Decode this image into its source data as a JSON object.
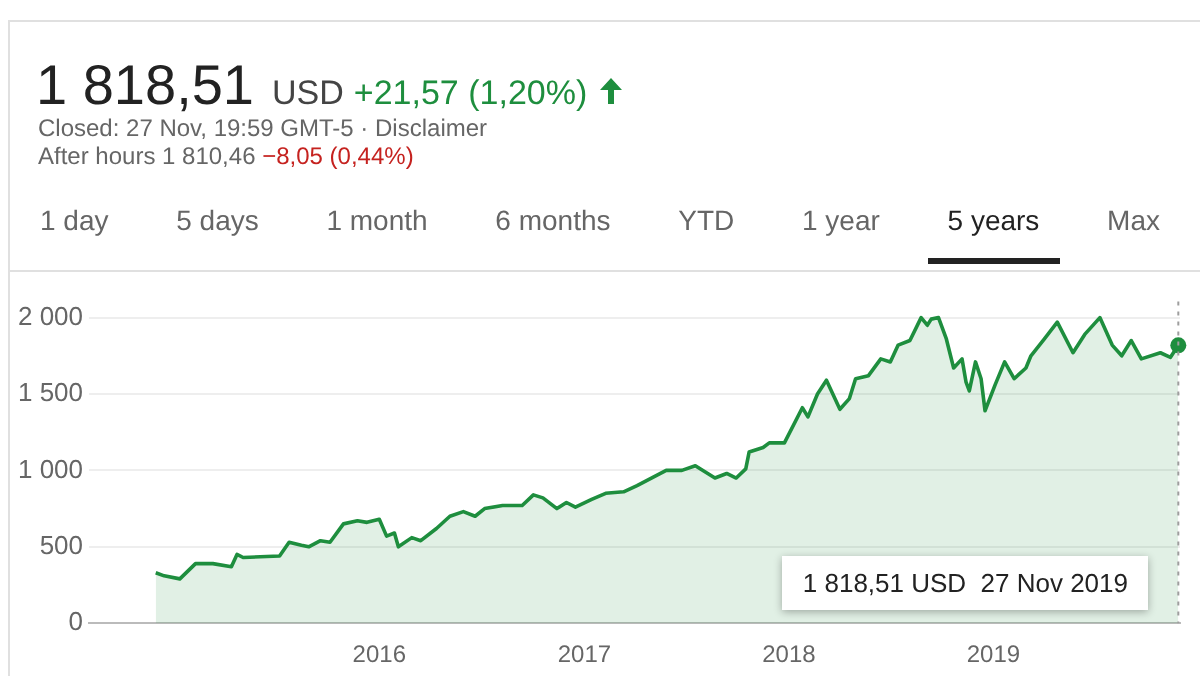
{
  "chart_data": {
    "type": "area",
    "title": "1 818,51",
    "subtitle": "Closed: 27 Nov, 19:59 GMT-5 · Disclaimer",
    "annotations": [
      "USD",
      "+21,57 (1,20%)",
      "After hours 1 810,46",
      "−8,05 (0,44%)",
      "1 day",
      "5 days",
      "1 month",
      "6 months",
      "YTD",
      "1 year",
      "5 years",
      "Max",
      "1 818,51 USD  27 Nov 2019"
    ],
    "x": [
      "2014-11-28",
      "2014-12-13",
      "2015-01-10",
      "2015-02-07",
      "2015-03-10",
      "2015-04-12",
      "2015-04-22",
      "2015-05-03",
      "2015-07-07",
      "2015-07-24",
      "2015-08-15",
      "2015-08-28",
      "2015-09-18",
      "2015-10-05",
      "2015-10-29",
      "2015-11-23",
      "2015-12-10",
      "2016-01-01",
      "2016-01-14",
      "2016-01-28",
      "2016-02-04",
      "2016-02-28",
      "2016-03-15",
      "2016-04-12",
      "2016-05-06",
      "2016-05-30",
      "2016-06-20",
      "2016-07-07",
      "2016-08-08",
      "2016-09-12",
      "2016-10-02",
      "2016-10-19",
      "2016-11-13",
      "2016-11-30",
      "2016-12-16",
      "2017-01-14",
      "2017-02-08",
      "2017-03-12",
      "2017-04-05",
      "2017-05-27",
      "2017-06-24",
      "2017-07-18",
      "2017-08-22",
      "2017-09-12",
      "2017-09-29",
      "2017-10-16",
      "2017-10-22",
      "2017-11-16",
      "2017-11-27",
      "2017-12-24",
      "2018-01-25",
      "2018-02-04",
      "2018-02-21",
      "2018-03-09",
      "2018-04-02",
      "2018-04-19",
      "2018-04-30",
      "2018-05-23",
      "2018-06-14",
      "2018-07-01",
      "2018-07-15",
      "2018-08-05",
      "2018-08-25",
      "2018-09-05",
      "2018-09-12",
      "2018-09-25",
      "2018-10-09",
      "2018-10-22",
      "2018-11-06",
      "2018-11-13",
      "2018-11-19",
      "2018-11-30",
      "2018-12-10",
      "2018-12-17",
      "2019-01-04",
      "2019-01-21",
      "2019-02-07",
      "2019-02-28",
      "2019-03-09",
      "2019-04-02",
      "2019-04-25",
      "2019-05-23",
      "2019-06-13",
      "2019-07-10",
      "2019-08-01",
      "2019-08-18",
      "2019-09-04",
      "2019-09-22",
      "2019-10-26",
      "2019-11-13",
      "2019-11-27"
    ],
    "series": [
      {
        "color": "#1e8e3e",
        "values": [
          330,
          310,
          290,
          390,
          390,
          370,
          450,
          430,
          440,
          530,
          510,
          500,
          540,
          530,
          650,
          670,
          660,
          680,
          570,
          590,
          500,
          560,
          540,
          620,
          700,
          730,
          700,
          750,
          770,
          770,
          840,
          820,
          750,
          790,
          760,
          810,
          850,
          860,
          900,
          1000,
          1000,
          1030,
          950,
          980,
          950,
          1010,
          1120,
          1150,
          1180,
          1180,
          1410,
          1350,
          1500,
          1590,
          1400,
          1470,
          1600,
          1620,
          1730,
          1710,
          1820,
          1850,
          2000,
          1950,
          1990,
          2000,
          1860,
          1670,
          1730,
          1580,
          1520,
          1710,
          1600,
          1390,
          1560,
          1710,
          1600,
          1670,
          1750,
          1860,
          1970,
          1770,
          1890,
          2000,
          1820,
          1750,
          1850,
          1730,
          1770,
          1740,
          1818.51
        ]
      }
    ],
    "xlim": [
      "2014-08-01",
      "2019-11-30"
    ],
    "xticks": [
      {
        "value": "2016-01-01",
        "label": "2016"
      },
      {
        "value": "2017-01-01",
        "label": "2017"
      },
      {
        "value": "2018-01-01",
        "label": "2018"
      },
      {
        "value": "2019-01-01",
        "label": "2019"
      }
    ],
    "ylim": [
      0,
      2000
    ],
    "yticks": [
      0,
      {
        "value": 500,
        "label": "500"
      },
      {
        "value": 1000,
        "label": "1 000"
      },
      {
        "value": 1500,
        "label": "1 500"
      },
      {
        "value": 2000,
        "label": "2 000"
      }
    ],
    "grid": "y",
    "legend": false,
    "ref_lines": [
      {
        "axis": "x",
        "value": "2019-11-27",
        "color": "#9e9e9e",
        "line_style": "dotted"
      }
    ]
  }
}
